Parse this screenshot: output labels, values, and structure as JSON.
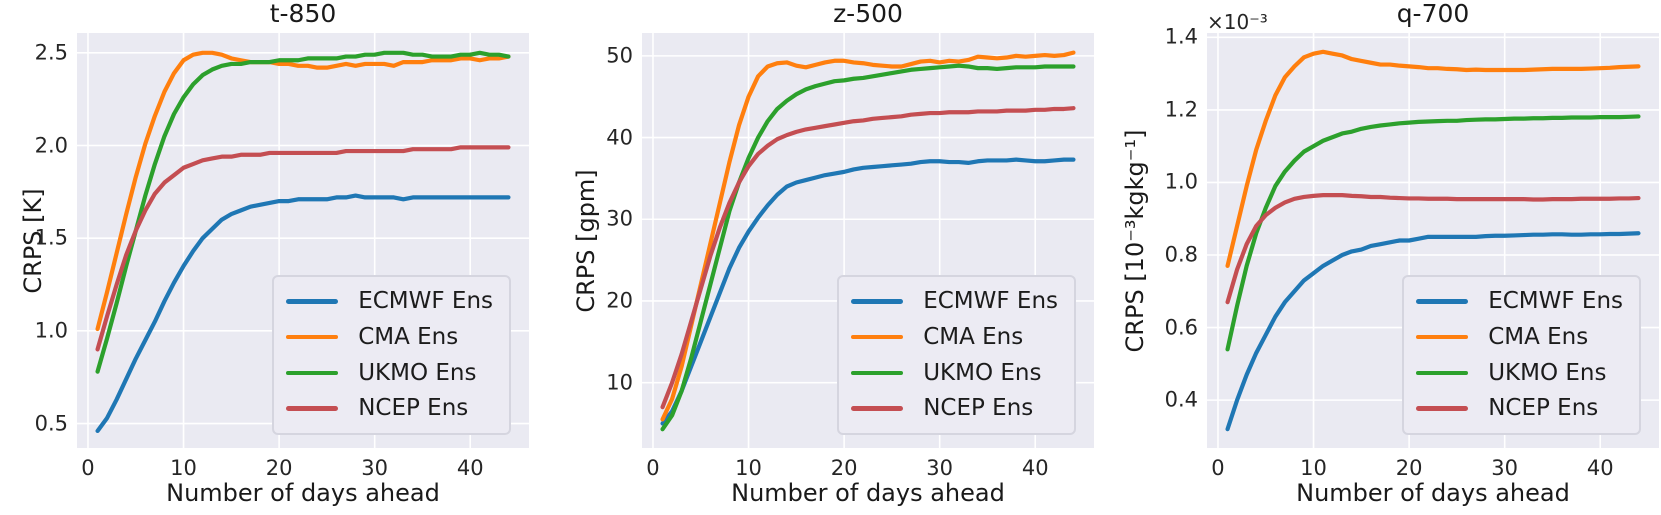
{
  "figure": {
    "background": "#ffffff",
    "axes_background": "#eaeaf2",
    "grid_color": "#ffffff",
    "text_color": "#262626"
  },
  "chart_data": [
    {
      "type": "line",
      "title": "t-850",
      "xlabel": "Number of days ahead",
      "ylabel": "CRPS [K]",
      "offset_text": "",
      "grid": true,
      "legend_position": "lower right",
      "xlim": [
        -1.15,
        46.15
      ],
      "ylim": [
        0.368,
        2.607
      ],
      "xticks": [
        0,
        10,
        20,
        30,
        40
      ],
      "xtick_labels": [
        "0",
        "10",
        "20",
        "30",
        "40"
      ],
      "yticks": [
        0.5,
        1.0,
        1.5,
        2.0,
        2.5
      ],
      "ytick_labels": [
        "0.5",
        "1.0",
        "1.5",
        "2.0",
        "2.5"
      ],
      "x": [
        1,
        2,
        3,
        4,
        5,
        6,
        7,
        8,
        9,
        10,
        11,
        12,
        13,
        14,
        15,
        16,
        17,
        18,
        19,
        20,
        21,
        22,
        23,
        24,
        25,
        26,
        27,
        28,
        29,
        30,
        31,
        32,
        33,
        34,
        35,
        36,
        37,
        38,
        39,
        40,
        41,
        42,
        43,
        44
      ],
      "series": [
        {
          "name": "ECMWF Ens",
          "color": "#1f77b4",
          "values": [
            0.46,
            0.53,
            0.63,
            0.74,
            0.85,
            0.95,
            1.05,
            1.16,
            1.26,
            1.35,
            1.43,
            1.5,
            1.55,
            1.6,
            1.63,
            1.65,
            1.67,
            1.68,
            1.69,
            1.7,
            1.7,
            1.71,
            1.71,
            1.71,
            1.71,
            1.72,
            1.72,
            1.73,
            1.72,
            1.72,
            1.72,
            1.72,
            1.71,
            1.72,
            1.72,
            1.72,
            1.72,
            1.72,
            1.72,
            1.72,
            1.72,
            1.72,
            1.72,
            1.72
          ]
        },
        {
          "name": "CMA Ens",
          "color": "#ff7f0e",
          "values": [
            1.01,
            1.21,
            1.42,
            1.63,
            1.83,
            2.01,
            2.16,
            2.29,
            2.39,
            2.46,
            2.49,
            2.5,
            2.5,
            2.49,
            2.47,
            2.46,
            2.45,
            2.45,
            2.45,
            2.44,
            2.44,
            2.43,
            2.43,
            2.42,
            2.42,
            2.43,
            2.44,
            2.43,
            2.44,
            2.44,
            2.44,
            2.43,
            2.45,
            2.45,
            2.45,
            2.46,
            2.46,
            2.46,
            2.47,
            2.47,
            2.46,
            2.47,
            2.47,
            2.48
          ]
        },
        {
          "name": "UKMO Ens",
          "color": "#2ca02c",
          "values": [
            0.78,
            0.96,
            1.15,
            1.35,
            1.54,
            1.73,
            1.9,
            2.05,
            2.17,
            2.26,
            2.33,
            2.38,
            2.41,
            2.43,
            2.44,
            2.44,
            2.45,
            2.45,
            2.45,
            2.46,
            2.46,
            2.46,
            2.47,
            2.47,
            2.47,
            2.47,
            2.48,
            2.48,
            2.49,
            2.49,
            2.5,
            2.5,
            2.5,
            2.49,
            2.49,
            2.48,
            2.48,
            2.48,
            2.49,
            2.49,
            2.5,
            2.49,
            2.49,
            2.48
          ]
        },
        {
          "name": "NCEP Ens",
          "color": "#c44e52",
          "values": [
            0.9,
            1.08,
            1.25,
            1.41,
            1.54,
            1.65,
            1.74,
            1.8,
            1.84,
            1.88,
            1.9,
            1.92,
            1.93,
            1.94,
            1.94,
            1.95,
            1.95,
            1.95,
            1.96,
            1.96,
            1.96,
            1.96,
            1.96,
            1.96,
            1.96,
            1.96,
            1.97,
            1.97,
            1.97,
            1.97,
            1.97,
            1.97,
            1.97,
            1.98,
            1.98,
            1.98,
            1.98,
            1.98,
            1.99,
            1.99,
            1.99,
            1.99,
            1.99,
            1.99
          ]
        }
      ]
    },
    {
      "type": "line",
      "title": "z-500",
      "xlabel": "Number of days ahead",
      "ylabel": "CRPS [gpm]",
      "offset_text": "",
      "grid": true,
      "legend_position": "lower right",
      "xlim": [
        -1.15,
        46.15
      ],
      "ylim": [
        2.0,
        52.8
      ],
      "xticks": [
        0,
        10,
        20,
        30,
        40
      ],
      "xtick_labels": [
        "0",
        "10",
        "20",
        "30",
        "40"
      ],
      "yticks": [
        10,
        20,
        30,
        40,
        50
      ],
      "ytick_labels": [
        "10",
        "20",
        "30",
        "40",
        "50"
      ],
      "x": [
        1,
        2,
        3,
        4,
        5,
        6,
        7,
        8,
        9,
        10,
        11,
        12,
        13,
        14,
        15,
        16,
        17,
        18,
        19,
        20,
        21,
        22,
        23,
        24,
        25,
        26,
        27,
        28,
        29,
        30,
        31,
        32,
        33,
        34,
        35,
        36,
        37,
        38,
        39,
        40,
        41,
        42,
        43,
        44
      ],
      "series": [
        {
          "name": "ECMWF Ens",
          "color": "#1f77b4",
          "values": [
            5.0,
            6.5,
            9.0,
            12.0,
            15.0,
            18.0,
            21.0,
            24.0,
            26.5,
            28.5,
            30.2,
            31.7,
            33.0,
            34.0,
            34.5,
            34.8,
            35.1,
            35.4,
            35.6,
            35.8,
            36.1,
            36.3,
            36.4,
            36.5,
            36.6,
            36.7,
            36.8,
            37.0,
            37.1,
            37.1,
            37.0,
            37.0,
            36.9,
            37.1,
            37.2,
            37.2,
            37.2,
            37.3,
            37.2,
            37.1,
            37.1,
            37.2,
            37.3,
            37.3
          ]
        },
        {
          "name": "CMA Ens",
          "color": "#ff7f0e",
          "values": [
            5.5,
            8.0,
            12.0,
            17.0,
            22.0,
            27.0,
            32.0,
            37.0,
            41.5,
            45.0,
            47.5,
            48.7,
            49.1,
            49.2,
            48.8,
            48.6,
            48.9,
            49.2,
            49.4,
            49.4,
            49.2,
            49.1,
            48.9,
            48.8,
            48.7,
            48.7,
            49.0,
            49.3,
            49.4,
            49.2,
            49.4,
            49.3,
            49.5,
            49.9,
            49.8,
            49.7,
            49.8,
            50.0,
            49.9,
            50.0,
            50.1,
            50.0,
            50.1,
            50.4
          ]
        },
        {
          "name": "UKMO Ens",
          "color": "#2ca02c",
          "values": [
            4.3,
            6.0,
            9.0,
            13.0,
            17.5,
            22.0,
            26.5,
            31.0,
            34.5,
            37.5,
            40.0,
            42.0,
            43.5,
            44.5,
            45.3,
            45.9,
            46.3,
            46.6,
            46.9,
            47.0,
            47.2,
            47.3,
            47.5,
            47.7,
            47.9,
            48.1,
            48.3,
            48.4,
            48.5,
            48.6,
            48.7,
            48.8,
            48.7,
            48.5,
            48.5,
            48.4,
            48.5,
            48.6,
            48.6,
            48.6,
            48.7,
            48.7,
            48.7,
            48.7
          ]
        },
        {
          "name": "NCEP Ens",
          "color": "#c44e52",
          "values": [
            7.0,
            10.0,
            13.5,
            17.5,
            21.5,
            25.5,
            29.0,
            32.0,
            34.5,
            36.5,
            38.0,
            39.0,
            39.8,
            40.3,
            40.7,
            41.0,
            41.2,
            41.4,
            41.6,
            41.8,
            42.0,
            42.1,
            42.3,
            42.4,
            42.5,
            42.6,
            42.8,
            42.9,
            43.0,
            43.0,
            43.1,
            43.1,
            43.1,
            43.2,
            43.2,
            43.2,
            43.3,
            43.3,
            43.3,
            43.4,
            43.4,
            43.5,
            43.5,
            43.6
          ]
        }
      ]
    },
    {
      "type": "line",
      "title": "q-700",
      "xlabel": "Number of days ahead",
      "ylabel": "CRPS [10⁻³kgkg⁻¹]",
      "offset_text": "×10⁻³",
      "grid": true,
      "legend_position": "lower right",
      "xlim": [
        -1.15,
        46.15
      ],
      "ylim": [
        0.268,
        1.412
      ],
      "xticks": [
        0,
        10,
        20,
        30,
        40
      ],
      "xtick_labels": [
        "0",
        "10",
        "20",
        "30",
        "40"
      ],
      "yticks": [
        0.4,
        0.6,
        0.8,
        1.0,
        1.2,
        1.4
      ],
      "ytick_labels": [
        "0.4",
        "0.6",
        "0.8",
        "1.0",
        "1.2",
        "1.4"
      ],
      "x": [
        1,
        2,
        3,
        4,
        5,
        6,
        7,
        8,
        9,
        10,
        11,
        12,
        13,
        14,
        15,
        16,
        17,
        18,
        19,
        20,
        21,
        22,
        23,
        24,
        25,
        26,
        27,
        28,
        29,
        30,
        31,
        32,
        33,
        34,
        35,
        36,
        37,
        38,
        39,
        40,
        41,
        42,
        43,
        44
      ],
      "series": [
        {
          "name": "ECMWF Ens",
          "color": "#1f77b4",
          "values": [
            0.32,
            0.4,
            0.47,
            0.53,
            0.58,
            0.63,
            0.67,
            0.7,
            0.73,
            0.75,
            0.77,
            0.785,
            0.8,
            0.81,
            0.815,
            0.825,
            0.83,
            0.835,
            0.84,
            0.84,
            0.845,
            0.85,
            0.85,
            0.85,
            0.85,
            0.85,
            0.85,
            0.852,
            0.853,
            0.853,
            0.854,
            0.855,
            0.856,
            0.856,
            0.857,
            0.857,
            0.856,
            0.856,
            0.857,
            0.857,
            0.858,
            0.858,
            0.859,
            0.86
          ]
        },
        {
          "name": "CMA Ens",
          "color": "#ff7f0e",
          "values": [
            0.77,
            0.88,
            0.99,
            1.09,
            1.17,
            1.24,
            1.29,
            1.32,
            1.345,
            1.355,
            1.36,
            1.355,
            1.35,
            1.34,
            1.335,
            1.33,
            1.325,
            1.325,
            1.322,
            1.32,
            1.318,
            1.315,
            1.315,
            1.313,
            1.312,
            1.31,
            1.311,
            1.31,
            1.31,
            1.31,
            1.31,
            1.31,
            1.311,
            1.312,
            1.313,
            1.313,
            1.313,
            1.313,
            1.314,
            1.315,
            1.316,
            1.318,
            1.319,
            1.32
          ]
        },
        {
          "name": "UKMO Ens",
          "color": "#2ca02c",
          "values": [
            0.54,
            0.66,
            0.77,
            0.86,
            0.93,
            0.99,
            1.03,
            1.06,
            1.085,
            1.1,
            1.115,
            1.125,
            1.135,
            1.14,
            1.148,
            1.153,
            1.157,
            1.16,
            1.163,
            1.165,
            1.167,
            1.168,
            1.169,
            1.17,
            1.17,
            1.172,
            1.173,
            1.174,
            1.174,
            1.175,
            1.176,
            1.176,
            1.177,
            1.177,
            1.178,
            1.178,
            1.179,
            1.179,
            1.179,
            1.18,
            1.18,
            1.18,
            1.181,
            1.182
          ]
        },
        {
          "name": "NCEP Ens",
          "color": "#c44e52",
          "values": [
            0.67,
            0.76,
            0.83,
            0.88,
            0.91,
            0.93,
            0.945,
            0.955,
            0.96,
            0.963,
            0.965,
            0.965,
            0.965,
            0.963,
            0.962,
            0.96,
            0.96,
            0.958,
            0.957,
            0.956,
            0.956,
            0.955,
            0.955,
            0.955,
            0.954,
            0.954,
            0.954,
            0.954,
            0.954,
            0.954,
            0.954,
            0.954,
            0.953,
            0.953,
            0.954,
            0.954,
            0.954,
            0.955,
            0.955,
            0.955,
            0.955,
            0.956,
            0.956,
            0.957
          ]
        }
      ]
    }
  ]
}
